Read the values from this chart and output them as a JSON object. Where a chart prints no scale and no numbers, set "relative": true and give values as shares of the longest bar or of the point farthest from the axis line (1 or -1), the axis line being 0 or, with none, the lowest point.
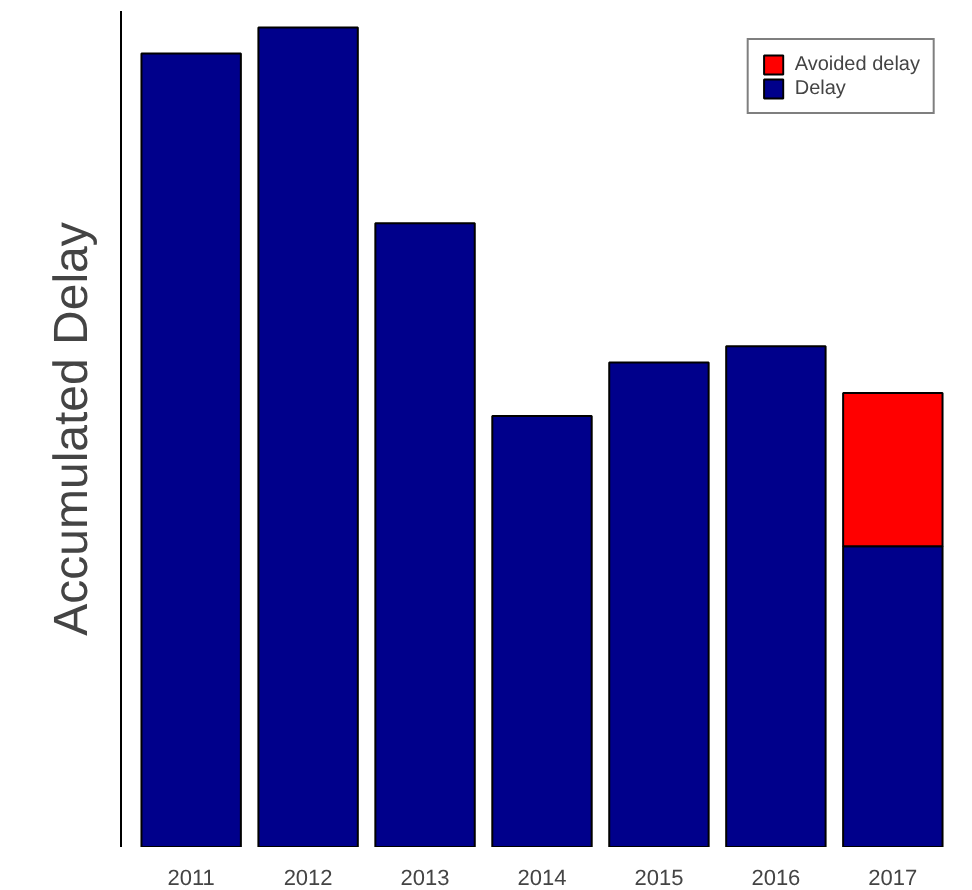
{
  "chart_data": {
    "type": "bar",
    "relative": true,
    "stacked": true,
    "ylabel": "Accumulated Delay",
    "categories": [
      "2011",
      "2012",
      "2013",
      "2014",
      "2015",
      "2016",
      "2017"
    ],
    "series": [
      {
        "name": "Delay",
        "color": "#00008b",
        "values": [
          0.968,
          1,
          0.761,
          0.526,
          0.591,
          0.611,
          0.367
        ]
      },
      {
        "name": "Avoided delay",
        "color": "#ff0000",
        "values": [
          null,
          null,
          null,
          null,
          null,
          null,
          0.187
        ]
      }
    ],
    "legend": "top right",
    "grid": false
  }
}
